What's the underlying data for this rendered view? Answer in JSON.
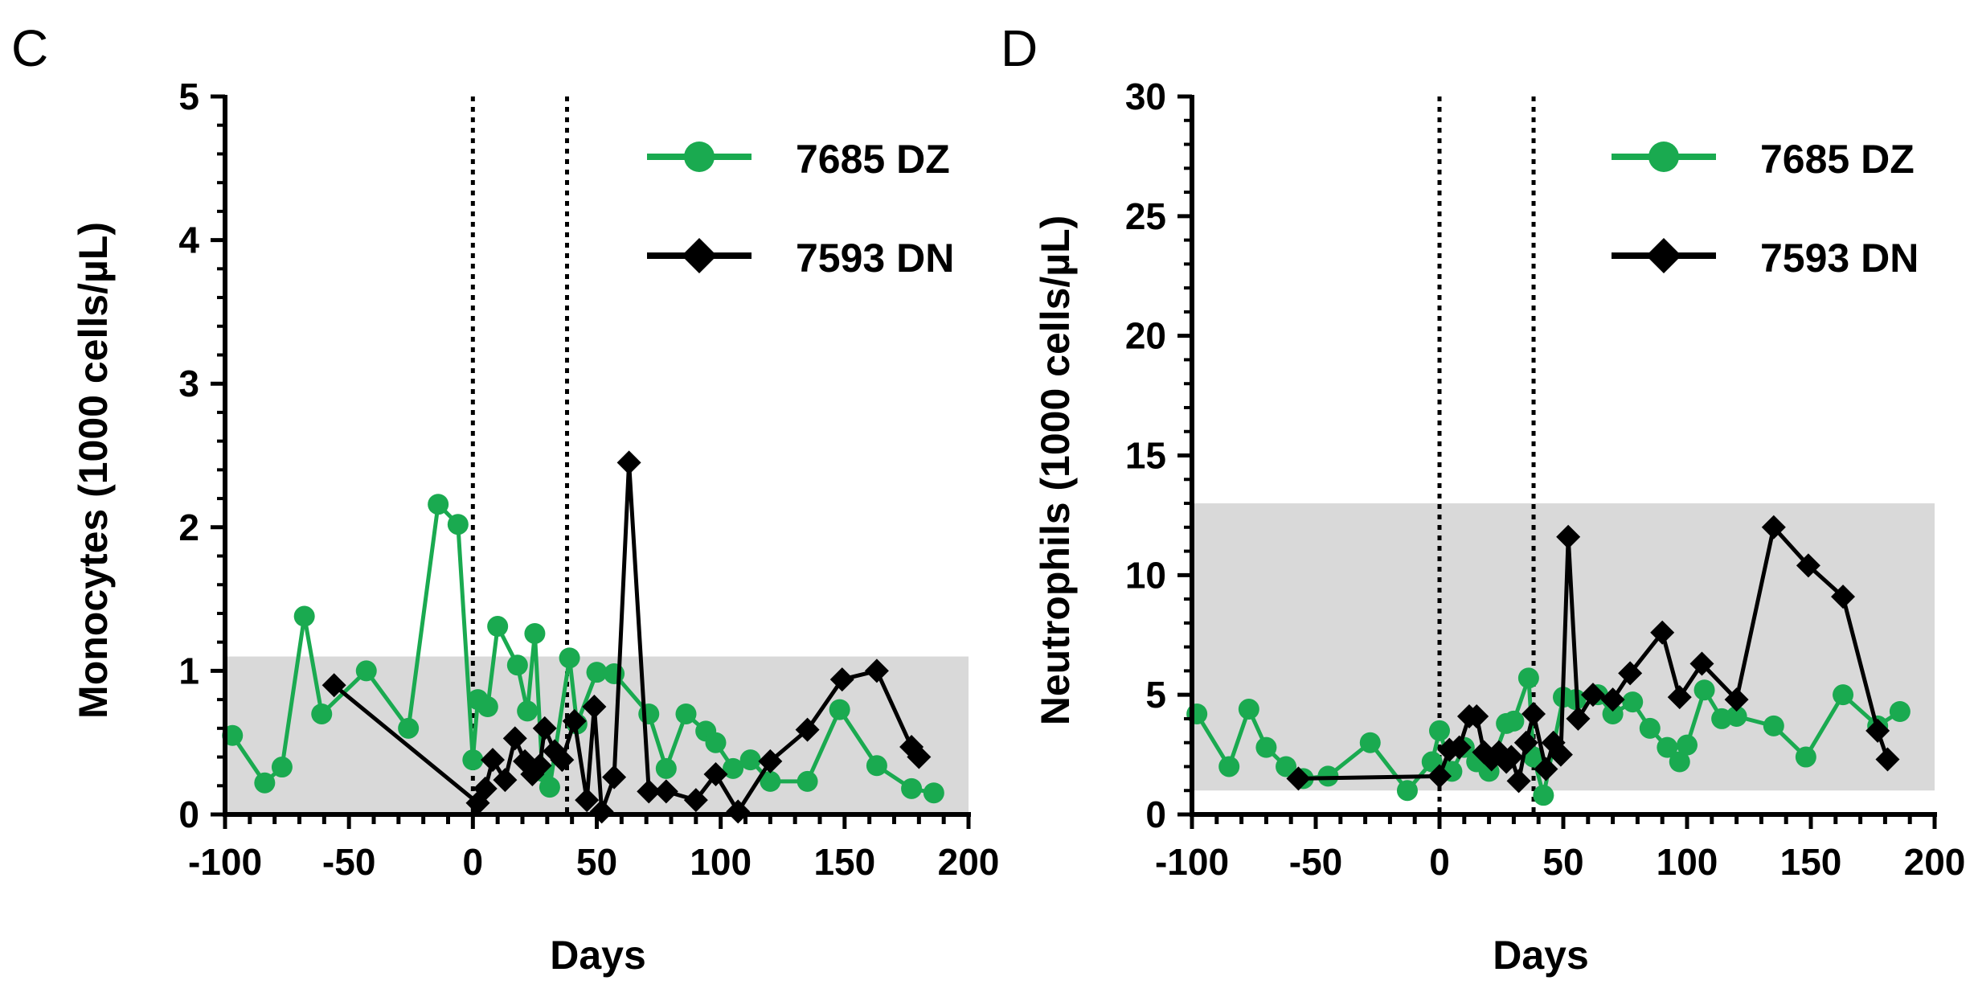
{
  "chart_data": [
    {
      "type": "line",
      "panel_label": "C",
      "title": "",
      "xlabel": "Days",
      "ylabel": "Monocytes (1000 cells/µL)",
      "xlim": [
        -100,
        200
      ],
      "ylim": [
        0,
        5
      ],
      "xticks": [
        -100,
        -50,
        0,
        50,
        100,
        150,
        200
      ],
      "yticks": [
        0,
        1,
        2,
        3,
        4,
        5
      ],
      "grid": false,
      "legend_position": "top-right",
      "reference_band": {
        "y0": 0,
        "y1": 1.1,
        "color": "#d9d9d9"
      },
      "vertical_lines": [
        0,
        38
      ],
      "series": [
        {
          "name": "7685 DZ",
          "color": "#1aaa50",
          "marker": "circle",
          "x": [
            -97,
            -84,
            -77,
            -68,
            -61,
            -43,
            -26,
            -14,
            -6,
            0,
            2,
            6,
            10,
            18,
            22,
            25,
            28,
            31,
            39,
            42,
            50,
            57,
            71,
            78,
            86,
            94,
            98,
            105,
            112,
            120,
            135,
            148,
            163,
            177,
            186
          ],
          "y": [
            0.55,
            0.22,
            0.33,
            1.38,
            0.7,
            1.0,
            0.6,
            2.16,
            2.02,
            0.38,
            0.8,
            0.75,
            1.31,
            1.04,
            0.72,
            1.26,
            0.3,
            0.19,
            1.09,
            0.63,
            0.99,
            0.98,
            0.7,
            0.32,
            0.7,
            0.58,
            0.5,
            0.32,
            0.38,
            0.23,
            0.23,
            0.73,
            0.34,
            0.18,
            0.15
          ]
        },
        {
          "name": "7593 DN",
          "color": "#000000",
          "marker": "diamond",
          "x": [
            -56,
            2,
            5,
            8,
            13,
            17,
            21,
            24,
            27,
            29,
            33,
            36,
            41,
            46,
            49,
            52,
            57,
            63,
            71,
            78,
            90,
            98,
            107,
            120,
            135,
            149,
            163,
            177,
            180
          ],
          "y": [
            0.9,
            0.08,
            0.18,
            0.38,
            0.24,
            0.53,
            0.37,
            0.28,
            0.34,
            0.6,
            0.44,
            0.38,
            0.65,
            0.1,
            0.75,
            0.02,
            0.26,
            2.45,
            0.16,
            0.16,
            0.1,
            0.28,
            0.02,
            0.37,
            0.59,
            0.94,
            1.0,
            0.47,
            0.4
          ]
        }
      ]
    },
    {
      "type": "line",
      "panel_label": "D",
      "title": "",
      "xlabel": "Days",
      "ylabel": "Neutrophils (1000 cells/µL)",
      "xlim": [
        -100,
        200
      ],
      "ylim": [
        0,
        30
      ],
      "xticks": [
        -100,
        -50,
        0,
        50,
        100,
        150,
        200
      ],
      "yticks": [
        0,
        5,
        10,
        15,
        20,
        25,
        30
      ],
      "grid": false,
      "legend_position": "top-right",
      "reference_band": {
        "y0": 1,
        "y1": 13,
        "color": "#d9d9d9"
      },
      "vertical_lines": [
        0,
        38
      ],
      "series": [
        {
          "name": "7685 DZ",
          "color": "#1aaa50",
          "marker": "circle",
          "x": [
            -98,
            -85,
            -77,
            -70,
            -62,
            -55,
            -45,
            -28,
            -13,
            -3,
            0,
            5,
            10,
            15,
            20,
            27,
            30,
            36,
            38,
            42,
            50,
            55,
            64,
            70,
            78,
            85,
            92,
            97,
            100,
            107,
            114,
            120,
            135,
            148,
            163,
            177,
            186
          ],
          "y": [
            4.2,
            2.0,
            4.4,
            2.8,
            2.0,
            1.5,
            1.6,
            3.0,
            1.0,
            2.2,
            3.5,
            1.8,
            2.8,
            2.2,
            1.8,
            3.8,
            3.9,
            5.7,
            2.4,
            0.8,
            4.9,
            4.8,
            5.0,
            4.2,
            4.7,
            3.6,
            2.8,
            2.2,
            2.9,
            5.2,
            4.0,
            4.1,
            3.7,
            2.4,
            5.0,
            3.7,
            4.3
          ]
        },
        {
          "name": "7593 DN",
          "color": "#000000",
          "marker": "diamond",
          "x": [
            -57,
            0,
            4,
            8,
            12,
            15,
            18,
            21,
            24,
            27,
            29,
            32,
            35,
            38,
            43,
            46,
            49,
            52,
            56,
            62,
            70,
            77,
            90,
            97,
            106,
            120,
            135,
            149,
            163,
            177,
            181
          ],
          "y": [
            1.5,
            1.6,
            2.7,
            2.8,
            4.1,
            4.1,
            2.6,
            2.3,
            2.6,
            2.2,
            2.4,
            1.4,
            3.0,
            4.2,
            1.9,
            3.0,
            2.5,
            11.6,
            4.0,
            5.0,
            4.8,
            5.9,
            7.6,
            4.9,
            6.3,
            4.8,
            12.0,
            10.4,
            9.1,
            3.5,
            2.3
          ]
        }
      ]
    }
  ]
}
